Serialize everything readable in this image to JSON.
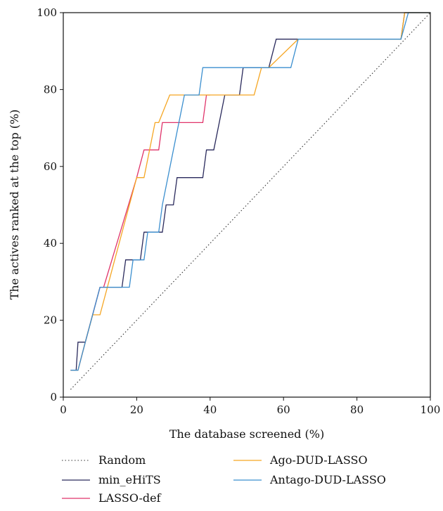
{
  "chart_data": {
    "type": "line",
    "title": "",
    "xlabel": "The database screened (%)",
    "ylabel": "The actives ranked at the top (%)",
    "xlim": [
      0,
      100
    ],
    "ylim": [
      0,
      100
    ],
    "xticks": [
      0,
      20,
      40,
      60,
      80,
      100
    ],
    "yticks": [
      0,
      20,
      40,
      60,
      80,
      100
    ],
    "grid": false,
    "legend_position": "bottom",
    "series": [
      {
        "name": "Random",
        "color": "#333333",
        "style": "dotted",
        "x": [
          2,
          100
        ],
        "y": [
          2,
          100
        ]
      },
      {
        "name": "min_eHiTS",
        "color": "#2a2a5c",
        "style": "solid",
        "x": [
          2,
          3.5,
          4,
          6,
          10,
          16,
          17,
          21,
          22,
          26,
          27,
          28,
          29,
          30,
          31,
          32,
          38,
          39,
          40,
          41,
          44,
          45,
          48,
          49,
          50,
          54,
          56,
          58,
          64,
          92,
          93,
          100
        ],
        "y": [
          7,
          7,
          14.3,
          14.3,
          28.6,
          28.6,
          35.7,
          35.7,
          42.9,
          42.9,
          42.9,
          50,
          50,
          50,
          57.1,
          57.1,
          57.1,
          64.3,
          64.3,
          64.3,
          78.6,
          78.6,
          78.6,
          85.7,
          85.7,
          85.7,
          85.7,
          93.1,
          93.1,
          93.1,
          100,
          100
        ]
      },
      {
        "name": "LASSO-def",
        "color": "#e0336a",
        "style": "solid",
        "x": [
          2,
          4,
          6,
          10,
          11,
          20,
          22,
          24,
          26,
          27,
          38,
          39,
          40
        ],
        "y": [
          7,
          7,
          14.3,
          28.6,
          28.6,
          57.1,
          64.3,
          64.3,
          64.3,
          71.4,
          71.4,
          78.6,
          78.6
        ]
      },
      {
        "name": "Ago-DUD-LASSO",
        "color": "#f5a623",
        "style": "solid",
        "x": [
          2,
          4,
          6,
          8,
          10,
          20,
          22,
          25,
          26,
          29,
          30,
          52,
          54,
          56,
          64,
          92,
          93,
          100
        ],
        "y": [
          7,
          7,
          14.3,
          21.4,
          21.4,
          57.1,
          57.1,
          71.4,
          71.4,
          78.6,
          78.6,
          78.6,
          85.7,
          85.7,
          93.1,
          93.1,
          100,
          100
        ]
      },
      {
        "name": "Antago-DUD-LASSO",
        "color": "#3b8fcf",
        "style": "solid",
        "x": [
          2,
          4,
          6,
          10,
          14,
          15,
          18,
          19,
          22,
          23,
          26,
          27,
          33,
          37,
          38,
          40,
          62,
          64,
          92,
          94,
          100
        ],
        "y": [
          7,
          7,
          14.3,
          28.6,
          28.6,
          28.6,
          28.6,
          35.7,
          35.7,
          42.9,
          42.9,
          50,
          78.6,
          78.6,
          85.7,
          85.7,
          85.7,
          93.1,
          93.1,
          100,
          100
        ]
      }
    ],
    "legend": [
      {
        "label": "Random",
        "series": 0
      },
      {
        "label": "min_eHiTS",
        "series": 1
      },
      {
        "label": "LASSO-def",
        "series": 2
      },
      {
        "label": "Ago-DUD-LASSO",
        "series": 3
      },
      {
        "label": "Antago-DUD-LASSO",
        "series": 4
      }
    ]
  }
}
